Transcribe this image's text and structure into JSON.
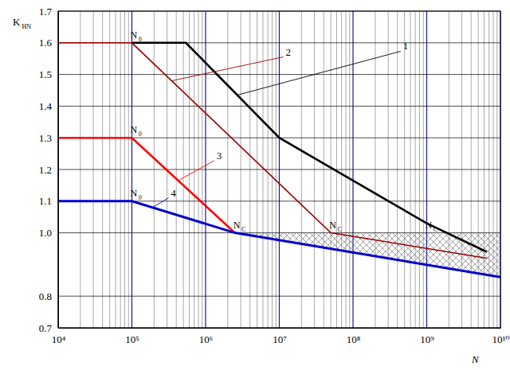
{
  "chart_data": {
    "type": "line",
    "log": "x",
    "grid": true,
    "x_label": "N",
    "y_label": "KHN",
    "xlim": [
      10000,
      10000000000
    ],
    "xticks": [
      {
        "value": 10000,
        "label": "10⁴"
      },
      {
        "value": 100000,
        "label": "10⁵"
      },
      {
        "value": 1000000,
        "label": "10⁶"
      },
      {
        "value": 10000000,
        "label": "10⁷"
      },
      {
        "value": 100000000,
        "label": "10⁸"
      },
      {
        "value": 1000000000,
        "label": "10⁹"
      },
      {
        "value": 10000000000,
        "label": "10¹⁰"
      }
    ],
    "ylim": [
      0.7,
      1.7
    ],
    "yticks": [
      0.7,
      0.8,
      {
        "value": 1,
        "label": "1.0"
      },
      1.1,
      1.2,
      1.3,
      1.4,
      1.5,
      1.6,
      1.7
    ],
    "series": [
      {
        "name": "1",
        "color": "#000000",
        "x": [
          100000,
          540000,
          10000000,
          1000000000,
          6500000000
        ],
        "values": [
          1.6,
          1.6,
          1.3,
          1.03,
          0.94
        ]
      },
      {
        "name": "2",
        "color": "#990000",
        "x": [
          10000,
          100000,
          50000000,
          6500000000
        ],
        "values": [
          1.6,
          1.6,
          1.0,
          0.92
        ]
      },
      {
        "name": "3",
        "color": "#ff0000",
        "x": [
          10000,
          100000,
          2500000
        ],
        "values": [
          1.3,
          1.3,
          1.0
        ]
      },
      {
        "name": "4",
        "color": "#0000cc",
        "x": [
          10000,
          100000,
          2500000,
          10000000000
        ],
        "values": [
          1.1,
          1.1,
          1.0,
          0.86
        ]
      }
    ],
    "annotations": [
      {
        "text": "N0",
        "x": 100000,
        "y": 1.6
      },
      {
        "text": "N0",
        "x": 100000,
        "y": 1.3
      },
      {
        "text": "N0",
        "x": 100000,
        "y": 1.1
      },
      {
        "text": "NC",
        "x": 2500000,
        "y": 1.0
      },
      {
        "text": "NC",
        "x": 50000000,
        "y": 1.0
      },
      {
        "text": "NC",
        "x": 1000000000,
        "y": 1.0
      }
    ]
  }
}
